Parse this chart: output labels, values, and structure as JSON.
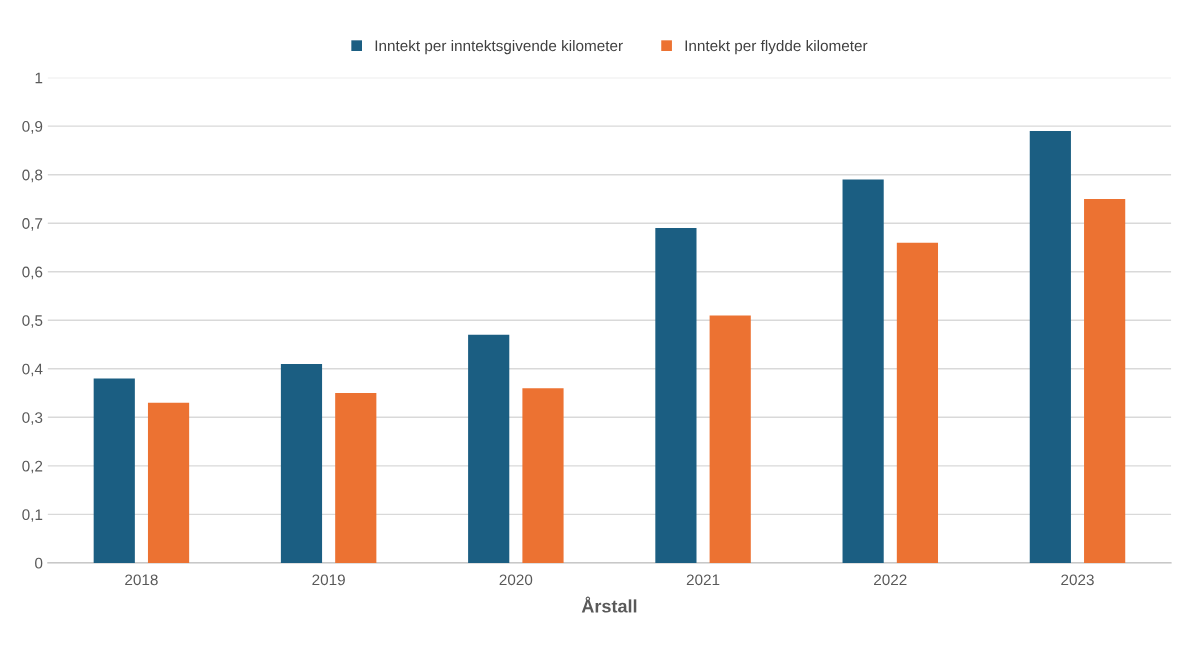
{
  "chart_data": {
    "type": "bar",
    "xlabel": "Årstall",
    "categories": [
      "2018",
      "2019",
      "2020",
      "2021",
      "2022",
      "2023"
    ],
    "series": [
      {
        "name": "Inntekt per inntektsgivende kilometer",
        "color": "#1b5e82",
        "values": [
          0.38,
          0.41,
          0.47,
          0.69,
          0.79,
          0.89
        ]
      },
      {
        "name": "Inntekt per flydde kilometer",
        "color": "#ec7232",
        "values": [
          0.33,
          0.35,
          0.36,
          0.51,
          0.66,
          0.75
        ]
      }
    ],
    "ylim": [
      0,
      1
    ],
    "yticks": [
      0,
      {
        "value": 0.1,
        "label": "0,1"
      },
      {
        "value": 0.2,
        "label": "0,2"
      },
      {
        "value": 0.3,
        "label": "0,3"
      },
      {
        "value": 0.4,
        "label": "0,4"
      },
      {
        "value": 0.5,
        "label": "0,5"
      },
      {
        "value": 0.6,
        "label": "0,6"
      },
      {
        "value": 0.7,
        "label": "0,7"
      },
      {
        "value": 0.8,
        "label": "0,8"
      },
      {
        "value": 0.9,
        "label": "0,9"
      },
      1
    ],
    "grid": "y",
    "legend": "top"
  }
}
